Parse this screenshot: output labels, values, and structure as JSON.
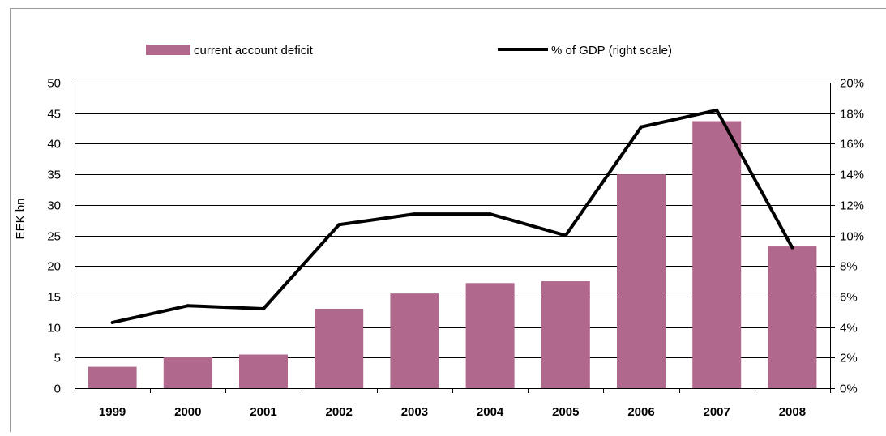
{
  "chart_data": {
    "type": "bar",
    "categories": [
      "1999",
      "2000",
      "2001",
      "2002",
      "2003",
      "2004",
      "2005",
      "2006",
      "2007",
      "2008"
    ],
    "series": [
      {
        "name": "current account deficit",
        "type": "bar",
        "axis": "left",
        "color": "#b0688c",
        "values": [
          3.5,
          5.1,
          5.5,
          13.0,
          15.5,
          17.2,
          17.5,
          35.0,
          43.7,
          23.2
        ]
      },
      {
        "name": "% of GDP (right scale)",
        "type": "line",
        "axis": "right",
        "color": "#000000",
        "values": [
          4.3,
          5.4,
          5.2,
          10.7,
          11.4,
          11.4,
          10.0,
          17.1,
          18.2,
          9.2
        ]
      }
    ],
    "ylabel": "EEK bn",
    "ylim": [
      0,
      50
    ],
    "y_ticks": [
      "0",
      "5",
      "10",
      "15",
      "20",
      "25",
      "30",
      "35",
      "40",
      "45",
      "50"
    ],
    "y2lim": [
      0,
      20
    ],
    "y2_ticks": [
      "0%",
      "2%",
      "4%",
      "6%",
      "8%",
      "10%",
      "12%",
      "14%",
      "16%",
      "18%",
      "20%"
    ],
    "grid": true,
    "legend_position": "top"
  }
}
